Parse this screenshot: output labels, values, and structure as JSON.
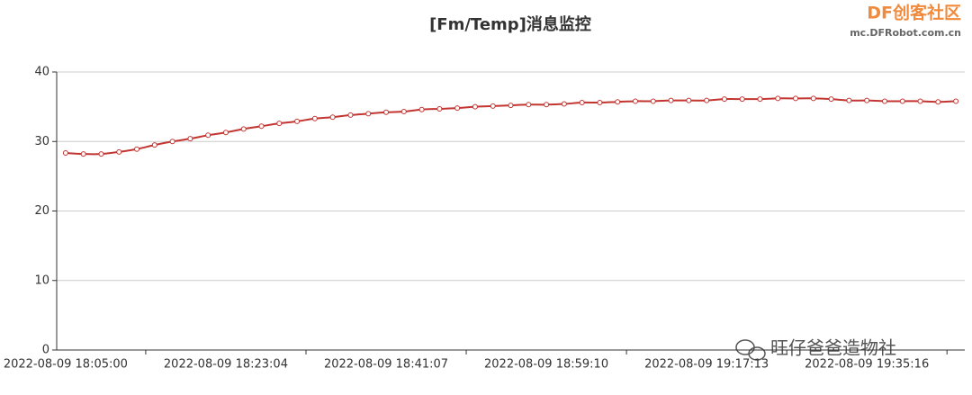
{
  "chart_data": {
    "type": "line",
    "title": "[Fm/Temp]消息监控",
    "categories": [
      "2022-08-09 18:05:00",
      null,
      null,
      null,
      null,
      null,
      null,
      null,
      null,
      "2022-08-09 18:23:04",
      null,
      null,
      null,
      null,
      null,
      null,
      null,
      null,
      "2022-08-09 18:41:07",
      null,
      null,
      null,
      null,
      null,
      null,
      null,
      null,
      "2022-08-09 18:59:10",
      null,
      null,
      null,
      null,
      null,
      null,
      null,
      null,
      "2022-08-09 19:17:13",
      null,
      null,
      null,
      null,
      null,
      null,
      null,
      null,
      "2022-08-09 19:35:16",
      null,
      null,
      null,
      null,
      null
    ],
    "series": [
      {
        "name": "Temp",
        "color": "#c23531",
        "values": [
          28.35,
          28.2,
          28.2,
          28.5,
          28.9,
          29.5,
          30.0,
          30.4,
          30.9,
          31.3,
          31.8,
          32.2,
          32.6,
          32.9,
          33.3,
          33.5,
          33.8,
          34.0,
          34.2,
          34.3,
          34.6,
          34.7,
          34.8,
          35.0,
          35.1,
          35.2,
          35.3,
          35.3,
          35.4,
          35.6,
          35.6,
          35.7,
          35.8,
          35.8,
          35.9,
          35.9,
          35.9,
          36.1,
          36.1,
          36.1,
          36.2,
          36.2,
          36.2,
          36.1,
          35.9,
          35.9,
          35.8,
          35.8,
          35.8,
          35.7,
          35.8
        ]
      }
    ],
    "ylim": [
      0,
      40
    ],
    "yticks": [
      0,
      10,
      20,
      30,
      40
    ],
    "grid": true,
    "smooth": true
  },
  "logo": {
    "name": "DF创客社区",
    "url": "mc.DFRobot.com.cn"
  },
  "watermark": "旺仔爸爸造物社"
}
